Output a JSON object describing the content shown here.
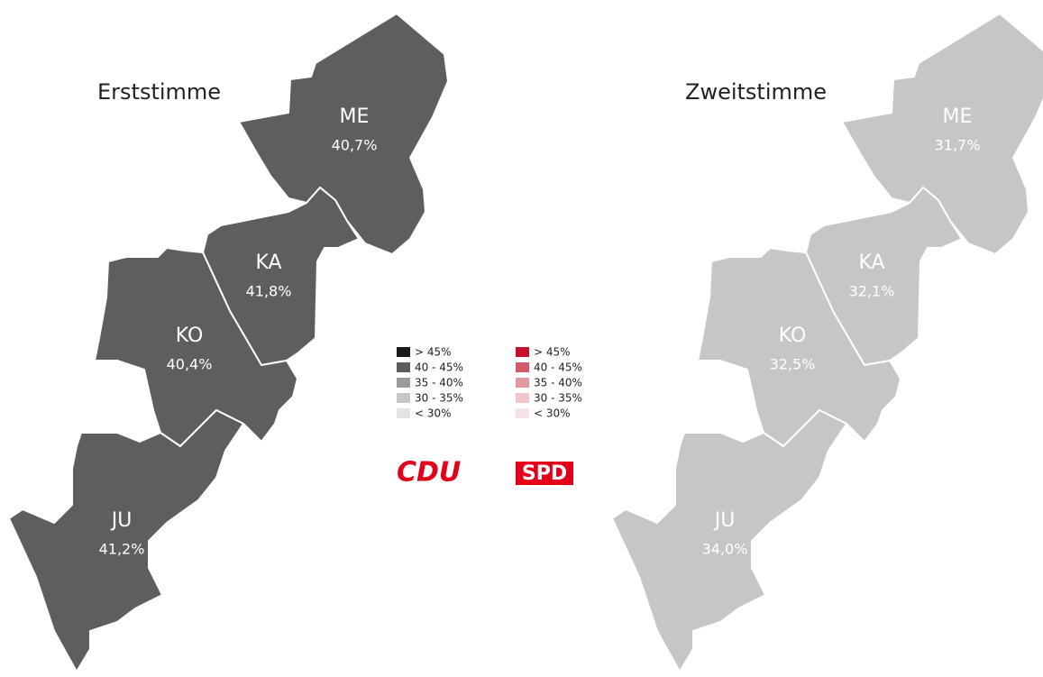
{
  "maps": [
    {
      "title": "Erststimme",
      "fill": "#5e5e5d",
      "label_color": "#ffffff",
      "districts": [
        {
          "code": "ME",
          "value": "40,7%"
        },
        {
          "code": "KA",
          "value": "41,8%"
        },
        {
          "code": "KO",
          "value": "40,4%"
        },
        {
          "code": "JU",
          "value": "41,2%"
        }
      ]
    },
    {
      "title": "Zweitstimme",
      "fill": "#c6c6c5",
      "label_color": "#ffffff",
      "districts": [
        {
          "code": "ME",
          "value": "31,7%"
        },
        {
          "code": "KA",
          "value": "32,1%"
        },
        {
          "code": "KO",
          "value": "32,5%"
        },
        {
          "code": "JU",
          "value": "34,0%"
        }
      ]
    }
  ],
  "legends": [
    {
      "items": [
        {
          "label": "> 45%",
          "color": "#1a1a1a"
        },
        {
          "label": "40 - 45%",
          "color": "#5e5e5e"
        },
        {
          "label": "35 - 40%",
          "color": "#9a9a9a"
        },
        {
          "label": "30 - 35%",
          "color": "#c6c6c6"
        },
        {
          "label": "< 30%",
          "color": "#e4e4e4"
        }
      ]
    },
    {
      "items": [
        {
          "label": "> 45%",
          "color": "#c8102e"
        },
        {
          "label": "40 - 45%",
          "color": "#d35a66"
        },
        {
          "label": "35 - 40%",
          "color": "#e0999f"
        },
        {
          "label": "30 - 35%",
          "color": "#f0c7cb"
        },
        {
          "label": "< 30%",
          "color": "#f6e3e5"
        }
      ]
    }
  ],
  "logos": [
    "CDU",
    "SPD"
  ]
}
